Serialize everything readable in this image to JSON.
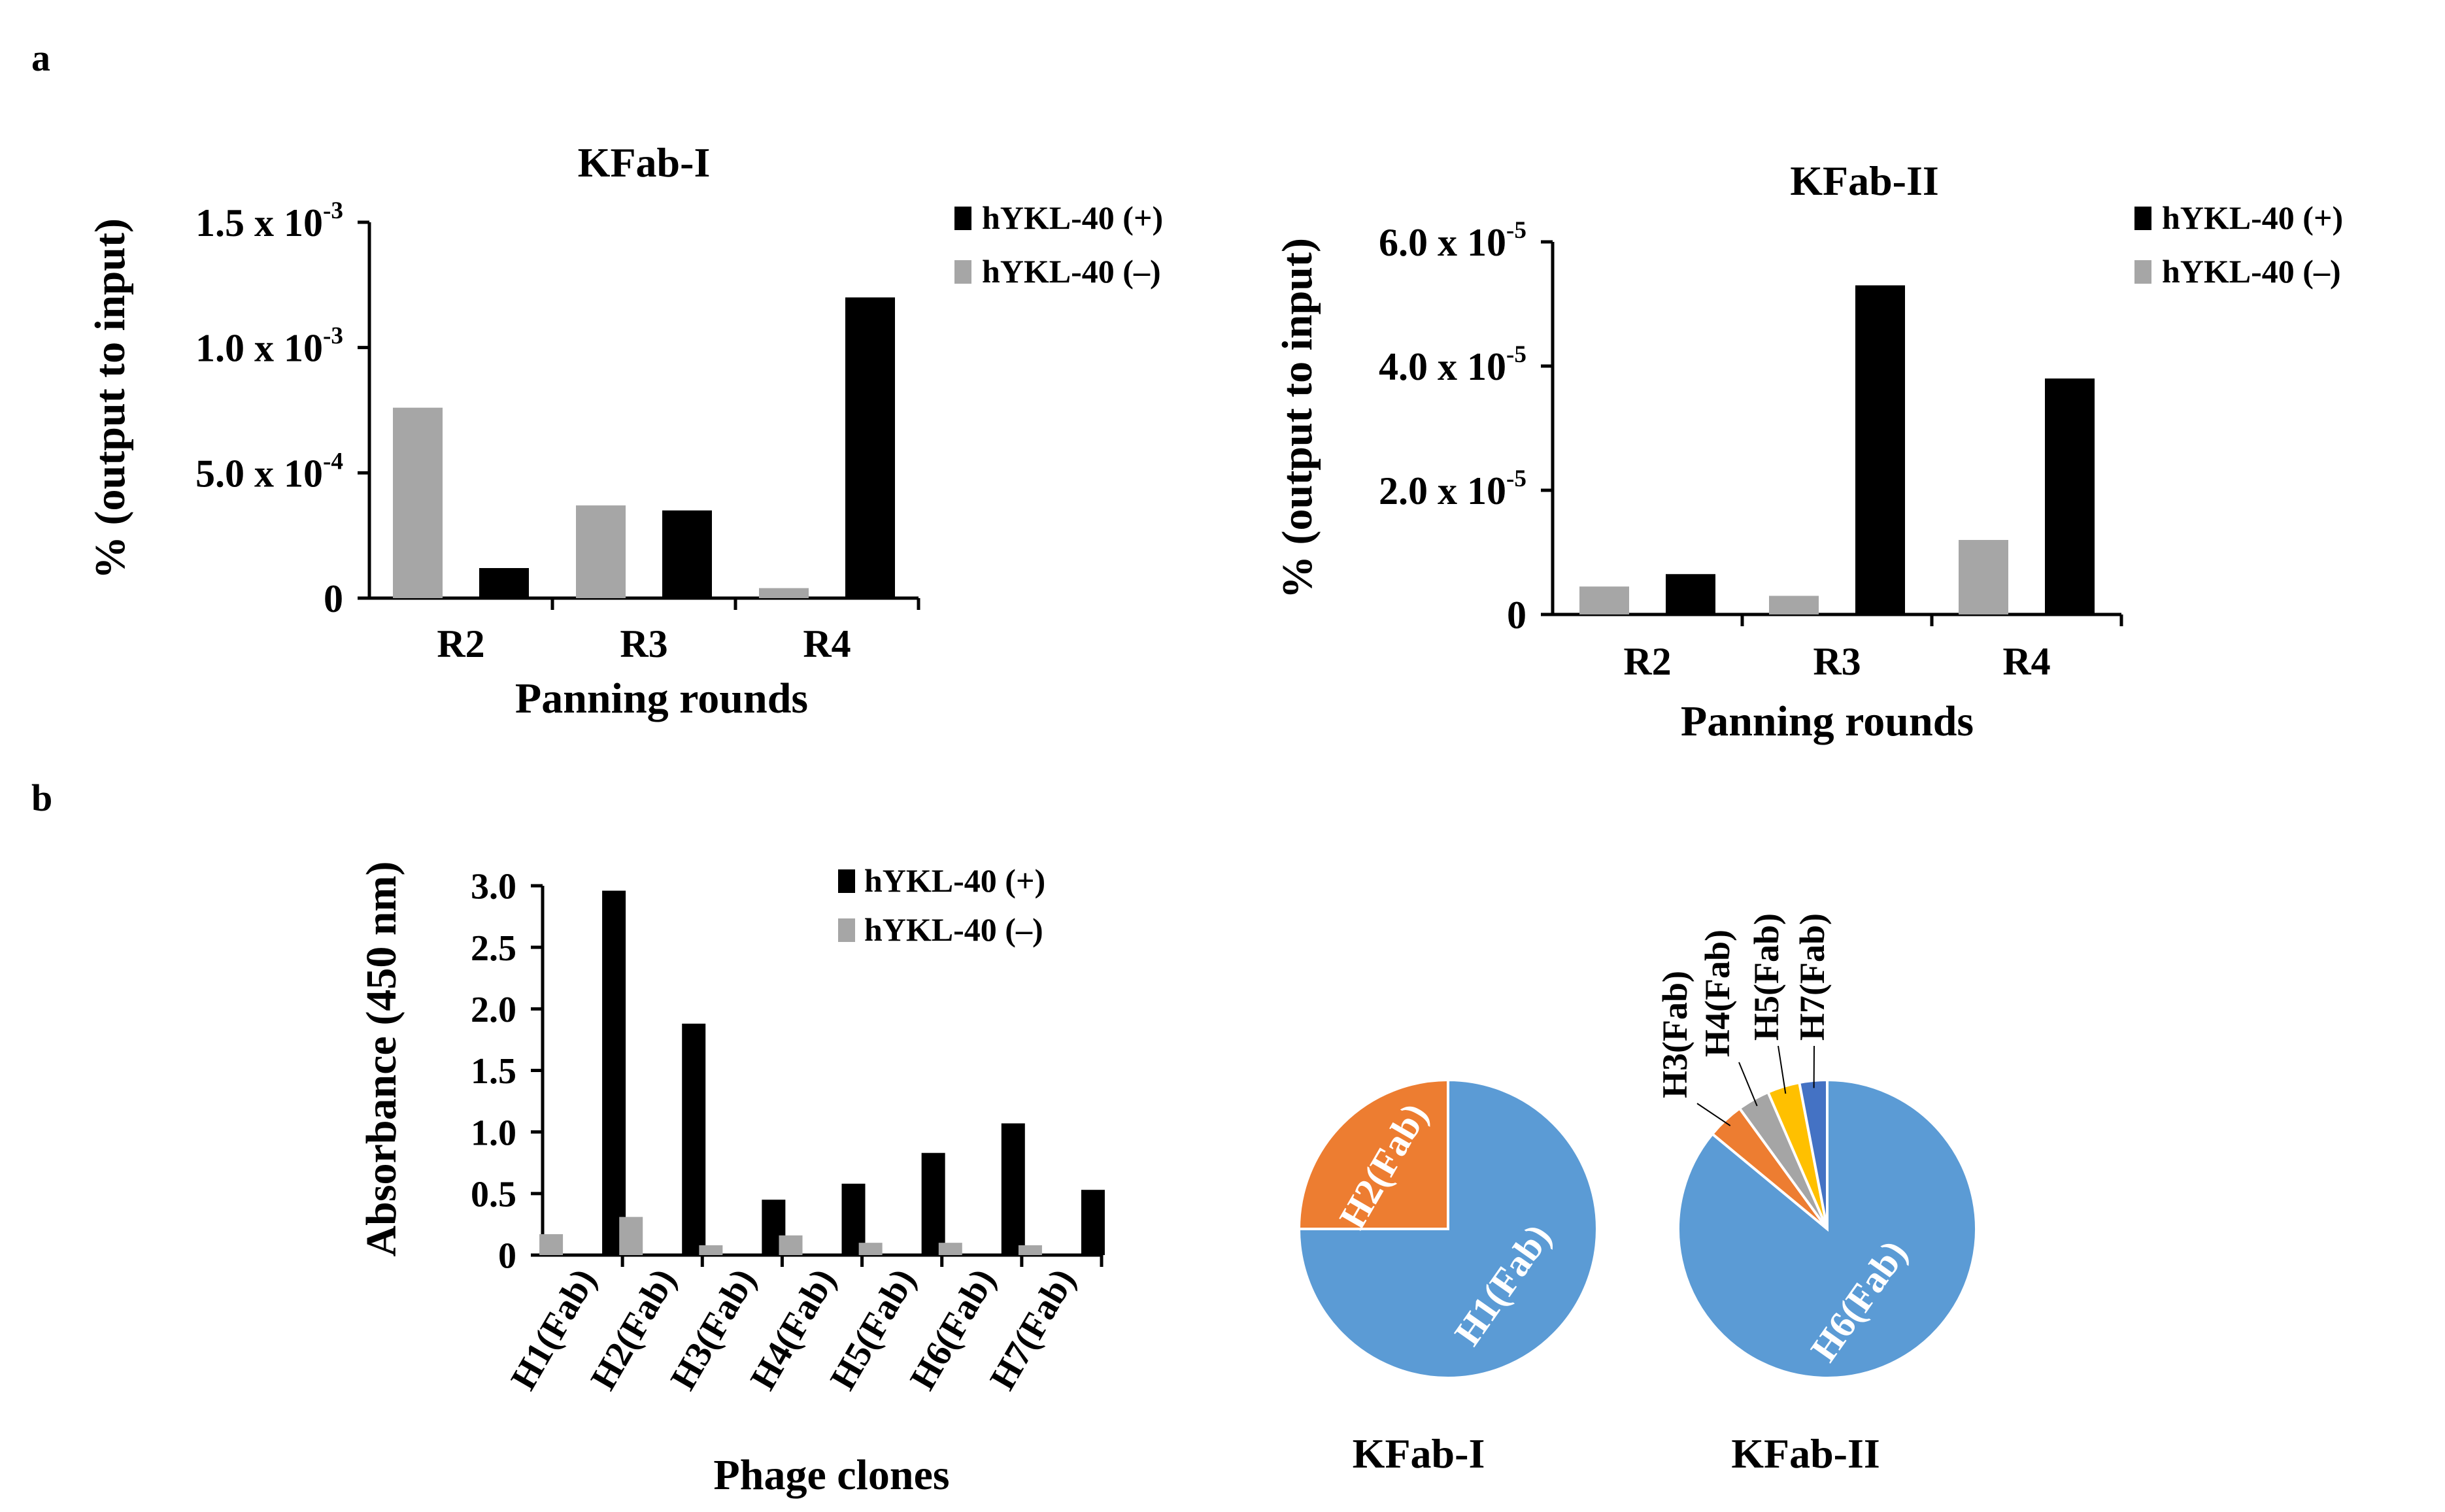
{
  "panels": {
    "a": "a",
    "b": "b"
  },
  "colors": {
    "pos": "#000000",
    "neg": "#a6a6a6",
    "blue": "#5b9bd5",
    "orange": "#ed7d31",
    "gray": "#a5a5a5",
    "yellow": "#ffc000",
    "darkblue": "#4472c4"
  },
  "chart_data": [
    {
      "id": "kfab1",
      "type": "bar",
      "title": "KFab-I",
      "xlabel": "Panning rounds",
      "ylabel": "% (output to input)",
      "categories": [
        "R2",
        "R3",
        "R4"
      ],
      "ylim": [
        0,
        0.0015
      ],
      "yticks": [
        {
          "value": 0,
          "mant": "0",
          "exp": ""
        },
        {
          "value": 0.0005,
          "mant": "5.0 x 10",
          "exp": "-4"
        },
        {
          "value": 0.001,
          "mant": "1.0 x 10",
          "exp": "-3"
        },
        {
          "value": 0.0015,
          "mant": "1.5 x 10",
          "exp": "-3"
        }
      ],
      "series": [
        {
          "name": "hYKL-40 (−)",
          "color": "#a6a6a6",
          "values": [
            0.00076,
            0.00037,
            4e-05
          ]
        },
        {
          "name": "hYKL-40 (+)",
          "color": "#000000",
          "values": [
            0.00012,
            0.00035,
            0.0012
          ]
        }
      ],
      "legend": [
        "hYKL-40 (+)",
        "hYKL-40 (–)"
      ]
    },
    {
      "id": "kfab2",
      "type": "bar",
      "title": "KFab-II",
      "xlabel": "Panning rounds",
      "ylabel": "% (output to input)",
      "categories": [
        "R2",
        "R3",
        "R4"
      ],
      "ylim": [
        0,
        6e-05
      ],
      "yticks": [
        {
          "value": 0,
          "mant": "0",
          "exp": ""
        },
        {
          "value": 2e-05,
          "mant": "2.0 x 10",
          "exp": "-5"
        },
        {
          "value": 4e-05,
          "mant": "4.0 x 10",
          "exp": "-5"
        },
        {
          "value": 6e-05,
          "mant": "6.0 x 10",
          "exp": "-5"
        }
      ],
      "series": [
        {
          "name": "hYKL-40 (−)",
          "color": "#a6a6a6",
          "values": [
            4.5e-06,
            3e-06,
            1.2e-05
          ]
        },
        {
          "name": "hYKL-40 (+)",
          "color": "#000000",
          "values": [
            6.5e-06,
            5.3e-05,
            3.8e-05
          ]
        }
      ],
      "legend": [
        "hYKL-40 (+)",
        "hYKL-40 (–)"
      ]
    },
    {
      "id": "absorb",
      "type": "bar",
      "title": "",
      "xlabel": "Phage clones",
      "ylabel": "Absorbance (450 nm)",
      "categories": [
        "H1(Fab)",
        "H2(Fab)",
        "H3(Fab)",
        "H4(Fab)",
        "H5(Fab)",
        "H6(Fab)",
        "H7(Fab)"
      ],
      "ylim": [
        0,
        3.0
      ],
      "yticks": [
        {
          "value": 0,
          "mant": "0",
          "exp": ""
        },
        {
          "value": 0.5,
          "mant": "0.5",
          "exp": ""
        },
        {
          "value": 1.0,
          "mant": "1.0",
          "exp": ""
        },
        {
          "value": 1.5,
          "mant": "1.5",
          "exp": ""
        },
        {
          "value": 2.0,
          "mant": "2.0",
          "exp": ""
        },
        {
          "value": 2.5,
          "mant": "2.5",
          "exp": ""
        },
        {
          "value": 3.0,
          "mant": "3.0",
          "exp": ""
        }
      ],
      "series": [
        {
          "name": "hYKL-40 (−)",
          "color": "#a6a6a6",
          "values": [
            0.17,
            0.31,
            0.08,
            0.16,
            0.1,
            0.1,
            0.08
          ]
        },
        {
          "name": "hYKL-40 (+)",
          "color": "#000000",
          "values": [
            2.96,
            1.88,
            0.45,
            0.58,
            0.83,
            1.07,
            0.53
          ]
        }
      ],
      "legend": [
        "hYKL-40 (+)",
        "hYKL-40 (–)"
      ]
    },
    {
      "id": "pie1",
      "type": "pie",
      "title": "KFab-I",
      "slices": [
        {
          "label": "H1(Fab)",
          "value": 75,
          "color": "#5b9bd5"
        },
        {
          "label": "H2(Fab)",
          "value": 25,
          "color": "#ed7d31"
        }
      ]
    },
    {
      "id": "pie2",
      "type": "pie",
      "title": "KFab-II",
      "slices": [
        {
          "label": "H6(Fab)",
          "value": 86,
          "color": "#5b9bd5"
        },
        {
          "label": "H3(Fab)",
          "value": 4,
          "color": "#ed7d31"
        },
        {
          "label": "H4(Fab)",
          "value": 3.5,
          "color": "#a5a5a5"
        },
        {
          "label": "H5(Fab)",
          "value": 3.5,
          "color": "#ffc000"
        },
        {
          "label": "H7(Fab)",
          "value": 3,
          "color": "#4472c4"
        }
      ]
    }
  ]
}
